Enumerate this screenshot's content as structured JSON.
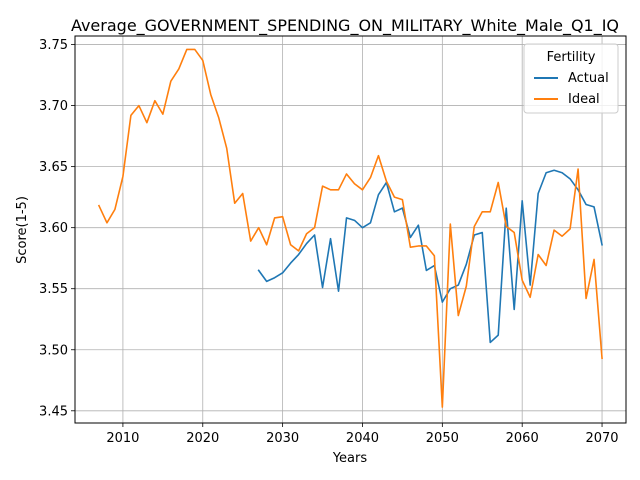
{
  "chart_data": {
    "type": "line",
    "title": "Average_GOVERNMENT_SPENDING_ON_MILITARY_White_Male_Q1_IQ",
    "xlabel": "Years",
    "ylabel": "Score(1-5)",
    "xlim": [
      2004,
      2073
    ],
    "ylim": [
      3.44,
      3.757
    ],
    "xticks": [
      2010,
      2020,
      2030,
      2040,
      2050,
      2060,
      2070
    ],
    "yticks": [
      3.45,
      3.5,
      3.55,
      3.6,
      3.65,
      3.7,
      3.75
    ],
    "xtick_labels": [
      "2010",
      "2020",
      "2030",
      "2040",
      "2050",
      "2060",
      "2070"
    ],
    "ytick_labels": [
      "3.45",
      "3.50",
      "3.55",
      "3.60",
      "3.65",
      "3.70",
      "3.75"
    ],
    "grid": true,
    "legend": {
      "title": "Fertility",
      "position": "upper right"
    },
    "series": [
      {
        "name": "Actual",
        "color": "#1f77b4",
        "x": [
          2027,
          2028,
          2029,
          2030,
          2031,
          2032,
          2033,
          2034,
          2035,
          2036,
          2037,
          2038,
          2039,
          2040,
          2041,
          2042,
          2043,
          2044,
          2045,
          2046,
          2047,
          2048,
          2049,
          2050,
          2051,
          2052,
          2053,
          2054,
          2055,
          2056,
          2057,
          2058,
          2059,
          2060,
          2061,
          2062,
          2063,
          2064,
          2065,
          2066,
          2067,
          2068,
          2069,
          2070
        ],
        "y": [
          3.565,
          3.556,
          3.559,
          3.563,
          3.571,
          3.578,
          3.587,
          3.594,
          3.551,
          3.591,
          3.548,
          3.608,
          3.606,
          3.6,
          3.604,
          3.627,
          3.637,
          3.613,
          3.616,
          3.592,
          3.602,
          3.565,
          3.569,
          3.539,
          3.55,
          3.553,
          3.57,
          3.594,
          3.596,
          3.506,
          3.512,
          3.616,
          3.533,
          3.622,
          3.553,
          3.628,
          3.645,
          3.647,
          3.645,
          3.64,
          3.631,
          3.619,
          3.617,
          3.586
        ]
      },
      {
        "name": "Ideal",
        "color": "#ff7f0e",
        "x": [
          2007,
          2008,
          2009,
          2010,
          2011,
          2012,
          2013,
          2014,
          2015,
          2016,
          2017,
          2018,
          2019,
          2020,
          2021,
          2022,
          2023,
          2024,
          2025,
          2026,
          2027,
          2028,
          2029,
          2030,
          2031,
          2032,
          2033,
          2034,
          2035,
          2036,
          2037,
          2038,
          2039,
          2040,
          2041,
          2042,
          2043,
          2044,
          2045,
          2046,
          2047,
          2048,
          2049,
          2050,
          2051,
          2052,
          2053,
          2054,
          2055,
          2056,
          2057,
          2058,
          2059,
          2060,
          2061,
          2062,
          2063,
          2064,
          2065,
          2066,
          2067,
          2068,
          2069,
          2070
        ],
        "y": [
          3.618,
          3.604,
          3.615,
          3.642,
          3.692,
          3.7,
          3.686,
          3.704,
          3.693,
          3.72,
          3.73,
          3.746,
          3.746,
          3.737,
          3.709,
          3.69,
          3.665,
          3.62,
          3.628,
          3.589,
          3.6,
          3.586,
          3.608,
          3.609,
          3.586,
          3.581,
          3.595,
          3.6,
          3.634,
          3.631,
          3.631,
          3.644,
          3.636,
          3.631,
          3.641,
          3.659,
          3.638,
          3.625,
          3.623,
          3.584,
          3.585,
          3.585,
          3.577,
          3.453,
          3.603,
          3.528,
          3.552,
          3.601,
          3.613,
          3.613,
          3.637,
          3.601,
          3.596,
          3.557,
          3.543,
          3.578,
          3.569,
          3.598,
          3.593,
          3.599,
          3.648,
          3.542,
          3.574,
          3.493
        ]
      }
    ]
  }
}
